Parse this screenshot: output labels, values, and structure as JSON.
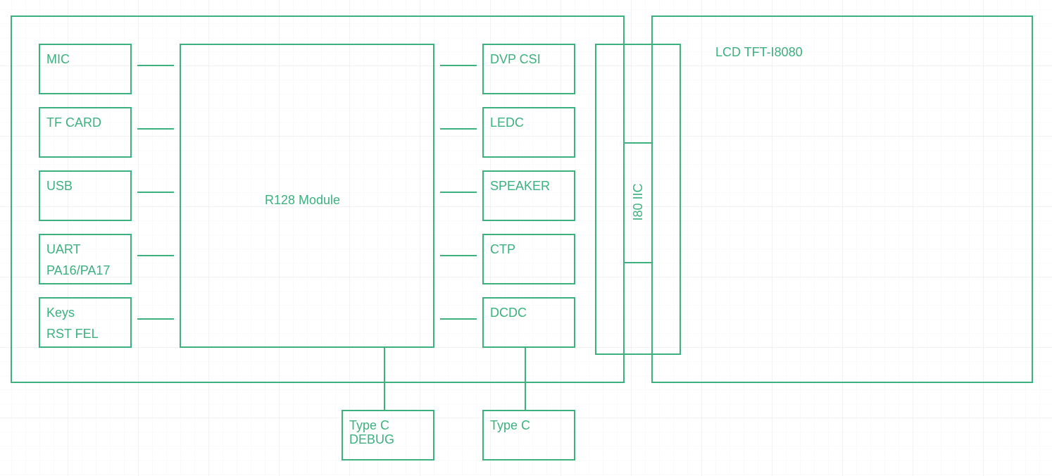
{
  "accent_color": "#3cb07f",
  "diagram": {
    "left_blocks": [
      {
        "line1": "MIC",
        "line2": ""
      },
      {
        "line1": "TF CARD",
        "line2": ""
      },
      {
        "line1": "USB",
        "line2": ""
      },
      {
        "line1": "UART",
        "line2": "PA16/PA17"
      },
      {
        "line1": "Keys",
        "line2": "RST FEL"
      }
    ],
    "core": {
      "label": "R128 Module"
    },
    "right_blocks": [
      {
        "label": "DVP CSI"
      },
      {
        "label": "LEDC"
      },
      {
        "label": "SPEAKER"
      },
      {
        "label": "CTP"
      },
      {
        "label": "DCDC"
      }
    ],
    "interface": {
      "label": "I80 IIC"
    },
    "lcd": {
      "label": "LCD TFT-I8080"
    },
    "bottom_blocks": [
      {
        "line1": "Type C",
        "line2": "DEBUG"
      },
      {
        "line1": "Type C",
        "line2": ""
      }
    ]
  }
}
